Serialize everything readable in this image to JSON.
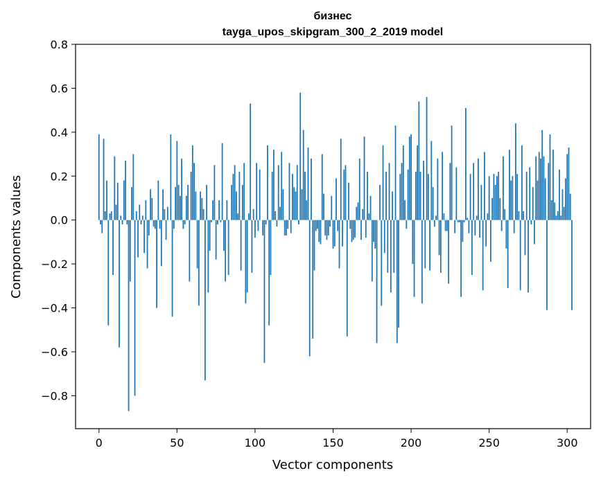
{
  "chart_data": {
    "type": "bar",
    "title": "бизнес",
    "subtitle": "tayga_upos_skipgram_300_2_2019 model",
    "xlabel": "Vector components",
    "ylabel": "Components values",
    "xlim": [
      -15,
      315
    ],
    "ylim": [
      -0.95,
      0.8
    ],
    "xticks": [
      0,
      50,
      100,
      150,
      200,
      250,
      300
    ],
    "yticks": [
      -0.8,
      -0.6,
      -0.4,
      -0.2,
      0.0,
      0.2,
      0.4,
      0.6,
      0.8
    ],
    "ytick_labels": [
      "−0.8",
      "−0.6",
      "−0.4",
      "−0.2",
      "0.0",
      "0.2",
      "0.4",
      "0.6",
      "0.8"
    ],
    "xtick_labels": [
      "0",
      "50",
      "100",
      "150",
      "200",
      "250",
      "300"
    ],
    "bar_color": "#1f77b4",
    "values": [
      0.39,
      -0.02,
      -0.06,
      0.37,
      0.04,
      0.18,
      -0.48,
      0.03,
      0.04,
      -0.25,
      0.29,
      0.07,
      0.17,
      -0.58,
      0.02,
      -0.02,
      0.18,
      0.27,
      -0.02,
      -0.87,
      -0.28,
      0.15,
      0.3,
      -0.8,
      0.04,
      -0.17,
      0.07,
      -0.02,
      0.02,
      -0.15,
      0.09,
      -0.22,
      -0.07,
      0.14,
      0.1,
      -0.03,
      -0.04,
      -0.4,
      0.18,
      -0.04,
      -0.21,
      0.14,
      0.05,
      -0.09,
      0.06,
      0.0,
      0.39,
      -0.44,
      -0.04,
      0.15,
      0.36,
      0.16,
      0.11,
      0.28,
      -0.04,
      -0.02,
      0.11,
      0.16,
      -0.28,
      0.22,
      0.34,
      0.26,
      0.13,
      -0.22,
      -0.39,
      0.13,
      0.1,
      0.05,
      -0.73,
      0.16,
      -0.33,
      -0.14,
      -0.01,
      0.09,
      0.25,
      -0.18,
      -0.02,
      0.09,
      -0.01,
      0.35,
      -0.14,
      -0.28,
      0.09,
      -0.25,
      0.0,
      0.16,
      0.21,
      0.25,
      0.13,
      0.03,
      0.22,
      -0.23,
      0.16,
      0.26,
      -0.38,
      -0.33,
      0.03,
      0.53,
      -0.24,
      0.05,
      -0.08,
      0.26,
      -0.05,
      0.23,
      0.0,
      -0.07,
      -0.65,
      -0.02,
      0.34,
      -0.48,
      -0.25,
      0.22,
      0.32,
      0.04,
      -0.03,
      0.25,
      0.06,
      0.31,
      0.14,
      -0.07,
      -0.07,
      -0.04,
      0.26,
      -0.06,
      0.21,
      0.15,
      0.13,
      0.25,
      -0.02,
      0.58,
      0.14,
      0.41,
      0.22,
      0.09,
      0.33,
      -0.62,
      0.28,
      -0.54,
      -0.23,
      -0.05,
      -0.04,
      -0.1,
      -0.11,
      0.3,
      0.12,
      -0.07,
      -0.09,
      -0.07,
      -0.03,
      0.11,
      -0.13,
      -0.12,
      0.19,
      -0.05,
      -0.22,
      0.37,
      -0.12,
      0.23,
      0.25,
      -0.53,
      0.17,
      -0.04,
      -0.1,
      -0.09,
      -0.08,
      0.06,
      0.08,
      0.28,
      -0.09,
      0.05,
      0.38,
      -0.08,
      0.22,
      0.03,
      0.11,
      -0.28,
      -0.1,
      -0.13,
      -0.56,
      0.0,
      0.16,
      -0.39,
      0.34,
      -0.15,
      0.22,
      -0.24,
      0.26,
      -0.33,
      0.13,
      -0.24,
      0.43,
      -0.56,
      -0.49,
      0.21,
      0.26,
      0.34,
      0.09,
      -0.04,
      0.23,
      0.38,
      0.39,
      -0.2,
      -0.35,
      0.22,
      0.34,
      0.54,
      0.22,
      -0.38,
      0.27,
      -0.22,
      0.56,
      0.21,
      -0.23,
      0.36,
      0.15,
      -0.03,
      0.02,
      0.28,
      -0.16,
      -0.24,
      0.31,
      0.03,
      -0.05,
      -0.05,
      -0.29,
      0.26,
      0.43,
      0.0,
      -0.06,
      0.24,
      -0.01,
      -0.01,
      -0.35,
      -0.1,
      -0.01,
      0.51,
      0.01,
      -0.06,
      0.21,
      -0.25,
      0.26,
      -0.07,
      0.02,
      0.28,
      -0.08,
      0.16,
      -0.32,
      0.31,
      -0.12,
      0.03,
      0.2,
      -0.19,
      0.1,
      0.21,
      0.16,
      0.2,
      0.22,
      0.1,
      -0.05,
      0.29,
      0.05,
      -0.13,
      -0.31,
      0.32,
      0.18,
      0.2,
      -0.06,
      0.44,
      0.21,
      0.04,
      -0.32,
      0.34,
      0.04,
      -0.16,
      0.22,
      -0.33,
      0.24,
      -0.02,
      0.15,
      -0.11,
      0.29,
      0.18,
      0.31,
      0.28,
      0.41,
      0.29,
      0.19,
      -0.41,
      0.26,
      0.39,
      0.09,
      0.32,
      0.08,
      0.02,
      0.04,
      0.23,
      0.02,
      0.14,
      0.06,
      0.19,
      0.3,
      0.33,
      0.12,
      -0.41
    ]
  }
}
